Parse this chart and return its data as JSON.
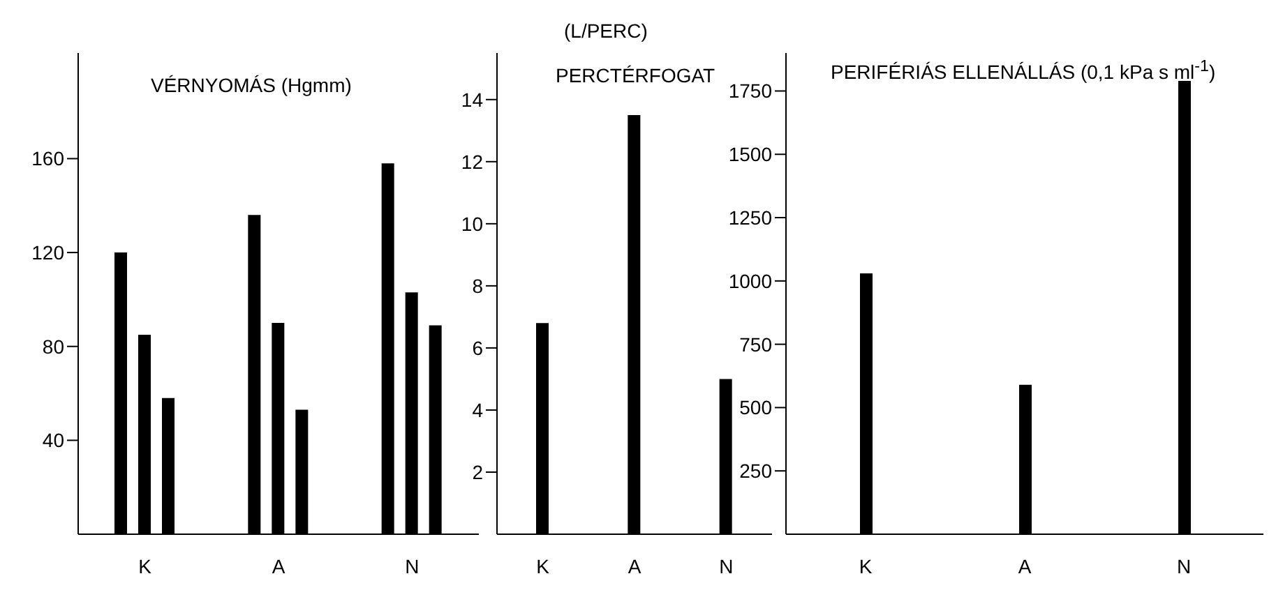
{
  "chart_data": [
    {
      "type": "bar",
      "title": "VÉRNYOMÁS  (Hgmm)",
      "categories": [
        "K",
        "A",
        "N"
      ],
      "series": [
        {
          "color": "#000000",
          "values": [
            120,
            136,
            158
          ]
        },
        {
          "color": "#000000",
          "values": [
            85,
            90,
            103
          ]
        },
        {
          "color": "#000000",
          "values": [
            58,
            53,
            89
          ]
        }
      ],
      "ylim": [
        0,
        205
      ],
      "yticks": [
        40,
        80,
        120,
        160
      ],
      "grid": false,
      "legend": false
    },
    {
      "type": "bar",
      "title": "PERCTÉRFOGAT",
      "ylabel": "(L/PERC)",
      "categories": [
        "K",
        "A",
        "N"
      ],
      "series": [
        {
          "color": "#000000",
          "values": [
            6.8,
            13.5,
            5
          ]
        }
      ],
      "ylim": [
        0,
        15.5
      ],
      "yticks": [
        2,
        4,
        6,
        8,
        10,
        12,
        14
      ],
      "grid": false,
      "legend": false
    },
    {
      "type": "bar",
      "title": "PERIFÉRIÁS ELLENÁLLÁS  (0,1 kPa s ml$^{-1}$)",
      "categories": [
        "K",
        "A",
        "N"
      ],
      "series": [
        {
          "color": "#000000",
          "values": [
            1030,
            590,
            1790
          ]
        }
      ],
      "ylim": [
        0,
        1900
      ],
      "yticks": [
        250,
        500,
        750,
        1000,
        1250,
        1500,
        1750
      ],
      "grid": false,
      "legend": false
    }
  ]
}
